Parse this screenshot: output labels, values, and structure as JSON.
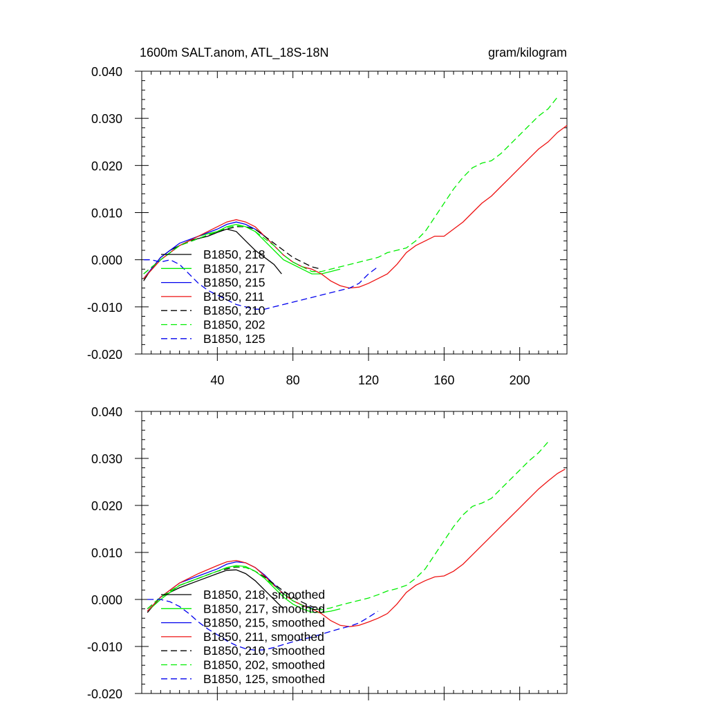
{
  "header": {
    "title": "1600m SALT.anom, ATL_18S-18N",
    "units": "gram/kilogram"
  },
  "colors": {
    "black": "#000000",
    "green": "#00ee00",
    "blue": "#0000ee",
    "red": "#ee1111"
  },
  "chart_data": [
    {
      "type": "line",
      "title": "1600m SALT.anom, ATL_18S-18N",
      "units_label": "gram/kilogram",
      "xlim": [
        0,
        225
      ],
      "ylim": [
        -0.02,
        0.04
      ],
      "x_ticks": [
        40,
        80,
        120,
        160,
        200
      ],
      "x_tick_labels": [
        "40",
        "80",
        "120",
        "160",
        "200"
      ],
      "y_ticks": [
        -0.02,
        -0.01,
        0.0,
        0.01,
        0.02,
        0.03,
        0.04
      ],
      "y_tick_labels": [
        "-0.020",
        "-0.010",
        "0.000",
        "0.010",
        "0.020",
        "0.030",
        "0.040"
      ],
      "legend_position": "lower-left",
      "grid": false,
      "series": [
        {
          "name": "B1850, 218",
          "color": "#000000",
          "dash": "solid",
          "x": [
            1,
            5,
            10,
            15,
            20,
            25,
            30,
            35,
            40,
            45,
            50,
            55,
            60,
            65,
            70,
            74
          ],
          "y": [
            -0.0045,
            -0.002,
            0.0005,
            0.002,
            0.003,
            0.004,
            0.0045,
            0.005,
            0.0058,
            0.0065,
            0.006,
            0.004,
            0.002,
            0.0005,
            -0.001,
            -0.003
          ]
        },
        {
          "name": "B1850, 217",
          "color": "#00ee00",
          "dash": "solid",
          "x": [
            1,
            10,
            20,
            30,
            40,
            45,
            50,
            55,
            60,
            65,
            70,
            75,
            80,
            85,
            90,
            95,
            100,
            105
          ],
          "y": [
            -0.004,
            0.0,
            0.003,
            0.005,
            0.006,
            0.007,
            0.0075,
            0.007,
            0.006,
            0.004,
            0.002,
            0.0,
            -0.001,
            -0.002,
            -0.003,
            -0.003,
            -0.0025,
            -0.002
          ]
        },
        {
          "name": "B1850, 215",
          "color": "#0000ee",
          "dash": "solid",
          "x": [
            1,
            10,
            20,
            30,
            40,
            45,
            50,
            55,
            60,
            65,
            70,
            75,
            80,
            85,
            90
          ],
          "y": [
            -0.004,
            0.0005,
            0.0035,
            0.005,
            0.0065,
            0.0075,
            0.008,
            0.0075,
            0.0065,
            0.005,
            0.003,
            0.001,
            -0.0005,
            -0.0015,
            -0.002
          ]
        },
        {
          "name": "B1850, 211",
          "color": "#ee1111",
          "dash": "solid",
          "x": [
            1,
            10,
            20,
            30,
            40,
            45,
            50,
            55,
            60,
            65,
            70,
            75,
            80,
            85,
            90,
            95,
            100,
            105,
            110,
            115,
            120,
            125,
            130,
            135,
            140,
            145,
            150,
            155,
            160,
            165,
            170,
            175,
            180,
            185,
            190,
            195,
            200,
            205,
            210,
            215,
            220,
            225
          ],
          "y": [
            -0.004,
            0.0,
            0.003,
            0.005,
            0.007,
            0.008,
            0.0085,
            0.008,
            0.007,
            0.005,
            0.003,
            0.001,
            -0.0005,
            -0.0015,
            -0.002,
            -0.003,
            -0.0045,
            -0.0055,
            -0.006,
            -0.0058,
            -0.005,
            -0.004,
            -0.003,
            -0.001,
            0.0015,
            0.003,
            0.004,
            0.005,
            0.005,
            0.0065,
            0.008,
            0.01,
            0.012,
            0.0135,
            0.0155,
            0.0175,
            0.0195,
            0.0215,
            0.0235,
            0.025,
            0.027,
            0.0285
          ]
        },
        {
          "name": "B1850, 210",
          "color": "#000000",
          "dash": "dashed",
          "x": [
            1,
            10,
            20,
            30,
            40,
            45,
            50,
            55,
            60,
            65,
            70,
            75,
            80,
            85,
            90,
            95
          ],
          "y": [
            -0.003,
            0.0,
            0.003,
            0.0045,
            0.006,
            0.0065,
            0.007,
            0.007,
            0.0065,
            0.005,
            0.0035,
            0.002,
            0.0005,
            -0.0005,
            -0.0015,
            -0.002
          ]
        },
        {
          "name": "B1850, 202",
          "color": "#00ee00",
          "dash": "dashed",
          "x": [
            1,
            10,
            20,
            30,
            40,
            45,
            50,
            55,
            60,
            65,
            70,
            75,
            80,
            85,
            90,
            95,
            100,
            105,
            110,
            115,
            120,
            125,
            130,
            135,
            140,
            145,
            150,
            155,
            160,
            165,
            170,
            175,
            180,
            185,
            190,
            195,
            200,
            205,
            210,
            215,
            220
          ],
          "y": [
            -0.003,
            0.0,
            0.003,
            0.0045,
            0.006,
            0.0068,
            0.0072,
            0.007,
            0.006,
            0.0045,
            0.003,
            0.001,
            -0.0005,
            -0.0015,
            -0.0025,
            -0.0025,
            -0.002,
            -0.0015,
            -0.001,
            -0.0005,
            0.0,
            0.0005,
            0.0015,
            0.002,
            0.0025,
            0.004,
            0.006,
            0.009,
            0.012,
            0.015,
            0.0175,
            0.0195,
            0.0205,
            0.021,
            0.0225,
            0.0245,
            0.0265,
            0.0285,
            0.0305,
            0.032,
            0.0345
          ]
        },
        {
          "name": "B1850, 125",
          "color": "#0000ee",
          "dash": "dashed",
          "x": [
            1,
            5,
            10,
            15,
            20,
            25,
            30,
            35,
            40,
            45,
            50,
            55,
            60,
            65,
            70,
            75,
            80,
            85,
            90,
            95,
            100,
            105,
            110,
            115,
            120,
            125
          ],
          "y": [
            0.0,
            0.0,
            -0.0005,
            0.0,
            -0.001,
            -0.003,
            -0.005,
            -0.0065,
            -0.0075,
            -0.0085,
            -0.0095,
            -0.01,
            -0.0105,
            -0.0105,
            -0.01,
            -0.0095,
            -0.009,
            -0.0085,
            -0.008,
            -0.0075,
            -0.007,
            -0.0065,
            -0.006,
            -0.005,
            -0.003,
            -0.0015
          ]
        }
      ]
    },
    {
      "type": "line",
      "xlim": [
        0,
        225
      ],
      "ylim": [
        -0.02,
        0.04
      ],
      "x_ticks": [
        40,
        80,
        120,
        160,
        200
      ],
      "y_ticks": [
        -0.02,
        -0.01,
        0.0,
        0.01,
        0.02,
        0.03,
        0.04
      ],
      "y_tick_labels": [
        "-0.020",
        "-0.010",
        "0.000",
        "0.010",
        "0.020",
        "0.030",
        "0.040"
      ],
      "legend_position": "lower-left",
      "grid": false,
      "series": [
        {
          "name": "B1850, 218, smoothed",
          "color": "#000000",
          "dash": "solid",
          "x": [
            3,
            10,
            20,
            30,
            40,
            45,
            50,
            55,
            60,
            65,
            70,
            75
          ],
          "y": [
            -0.0028,
            0.0005,
            0.0025,
            0.004,
            0.0055,
            0.0062,
            0.0063,
            0.0055,
            0.004,
            0.002,
            0.0,
            -0.002
          ]
        },
        {
          "name": "B1850, 217, smoothed",
          "color": "#00ee00",
          "dash": "solid",
          "x": [
            3,
            10,
            20,
            30,
            40,
            45,
            50,
            55,
            60,
            65,
            70,
            75,
            80,
            85,
            90,
            95,
            100,
            105
          ],
          "y": [
            -0.0025,
            0.0,
            0.003,
            0.0045,
            0.006,
            0.0068,
            0.0072,
            0.007,
            0.006,
            0.0045,
            0.0025,
            0.0005,
            -0.001,
            -0.002,
            -0.0027,
            -0.0028,
            -0.0025,
            -0.002
          ]
        },
        {
          "name": "B1850, 215, smoothed",
          "color": "#0000ee",
          "dash": "solid",
          "x": [
            3,
            10,
            20,
            30,
            40,
            45,
            50,
            55,
            60,
            65,
            70,
            75,
            80,
            85,
            90
          ],
          "y": [
            -0.0025,
            0.0005,
            0.0035,
            0.005,
            0.0065,
            0.0075,
            0.008,
            0.0078,
            0.0068,
            0.0052,
            0.0032,
            0.0012,
            -0.0003,
            -0.0012,
            -0.0018
          ]
        },
        {
          "name": "B1850, 211, smoothed",
          "color": "#ee1111",
          "dash": "solid",
          "x": [
            3,
            10,
            20,
            30,
            40,
            45,
            50,
            55,
            60,
            65,
            70,
            75,
            80,
            85,
            90,
            95,
            100,
            105,
            110,
            115,
            120,
            125,
            130,
            135,
            140,
            145,
            150,
            155,
            160,
            165,
            170,
            175,
            180,
            185,
            190,
            195,
            200,
            205,
            210,
            215,
            220,
            224
          ],
          "y": [
            -0.0025,
            0.0005,
            0.0035,
            0.0055,
            0.0072,
            0.008,
            0.0083,
            0.0078,
            0.0068,
            0.005,
            0.003,
            0.0012,
            -0.0003,
            -0.0012,
            -0.002,
            -0.003,
            -0.0045,
            -0.0055,
            -0.0058,
            -0.0055,
            -0.0048,
            -0.004,
            -0.003,
            -0.001,
            0.0015,
            0.003,
            0.004,
            0.0048,
            0.005,
            0.006,
            0.0075,
            0.0095,
            0.0115,
            0.0135,
            0.0155,
            0.0175,
            0.0195,
            0.0215,
            0.0235,
            0.0252,
            0.0268,
            0.0277
          ]
        },
        {
          "name": "B1850, 210, smoothed",
          "color": "#000000",
          "dash": "dashed",
          "x": [
            3,
            10,
            20,
            30,
            40,
            45,
            50,
            55,
            60,
            65,
            70,
            75,
            80,
            85,
            90,
            95
          ],
          "y": [
            -0.002,
            0.0005,
            0.003,
            0.0045,
            0.006,
            0.0065,
            0.0069,
            0.0068,
            0.006,
            0.0048,
            0.0033,
            0.0018,
            0.0005,
            -0.0006,
            -0.0015,
            -0.002
          ]
        },
        {
          "name": "B1850, 202, smoothed",
          "color": "#00ee00",
          "dash": "dashed",
          "x": [
            3,
            10,
            20,
            30,
            40,
            45,
            50,
            55,
            60,
            65,
            70,
            75,
            80,
            85,
            90,
            95,
            100,
            105,
            110,
            115,
            120,
            125,
            130,
            135,
            140,
            145,
            150,
            155,
            160,
            165,
            170,
            175,
            180,
            185,
            190,
            195,
            200,
            205,
            210,
            215
          ],
          "y": [
            -0.002,
            0.0005,
            0.003,
            0.0045,
            0.006,
            0.0067,
            0.007,
            0.0068,
            0.006,
            0.0045,
            0.003,
            0.0012,
            -0.0003,
            -0.0013,
            -0.002,
            -0.0022,
            -0.0018,
            -0.0012,
            -0.0007,
            -0.0002,
            0.0003,
            0.001,
            0.0018,
            0.0023,
            0.003,
            0.0045,
            0.0065,
            0.0095,
            0.0125,
            0.0155,
            0.018,
            0.0198,
            0.0205,
            0.0215,
            0.0235,
            0.0255,
            0.0275,
            0.0295,
            0.0312,
            0.0335
          ]
        },
        {
          "name": "B1850, 125, smoothed",
          "color": "#0000ee",
          "dash": "dashed",
          "x": [
            3,
            10,
            15,
            20,
            25,
            30,
            35,
            40,
            45,
            50,
            55,
            60,
            65,
            70,
            75,
            80,
            85,
            90,
            95,
            100,
            105,
            110,
            115,
            120,
            125
          ],
          "y": [
            0.0,
            0.0,
            -0.0005,
            -0.0015,
            -0.003,
            -0.0048,
            -0.0063,
            -0.0075,
            -0.0088,
            -0.0098,
            -0.0105,
            -0.0108,
            -0.0107,
            -0.0102,
            -0.0096,
            -0.009,
            -0.0085,
            -0.008,
            -0.0074,
            -0.0068,
            -0.0062,
            -0.0057,
            -0.005,
            -0.0038,
            -0.0025
          ]
        }
      ]
    }
  ]
}
